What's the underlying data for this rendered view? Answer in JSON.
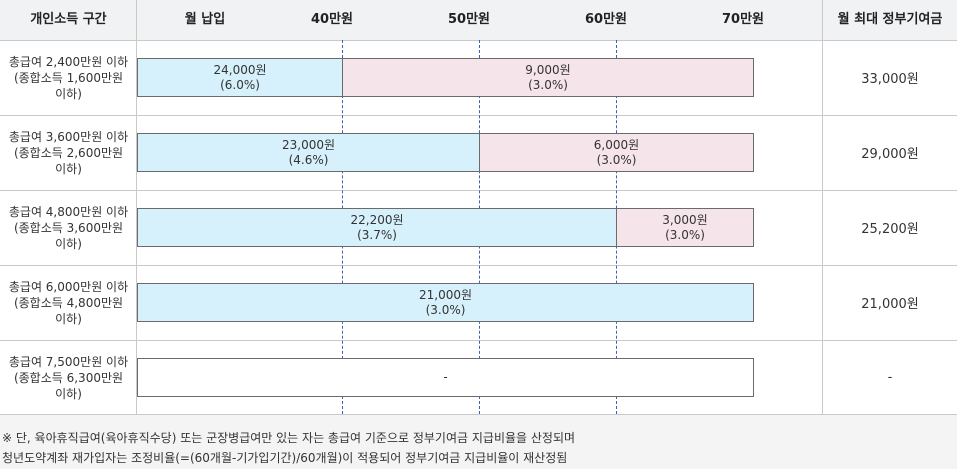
{
  "chart_data": {
    "type": "table",
    "columns": {
      "group": "개인소득 구간",
      "payment": "월 납입",
      "max": "월 최대 정부기여금"
    },
    "axis": {
      "ticks": [
        "40만원",
        "50만원",
        "60만원",
        "70만원"
      ],
      "tick_values": [
        40,
        50,
        60,
        70
      ],
      "range": [
        25,
        70
      ],
      "unit": "만원"
    },
    "rows": [
      {
        "label_lines": [
          "총급여 2,400만원 이하",
          "(종합소득 1,600만원",
          "이하)"
        ],
        "segments": [
          {
            "from": 25,
            "to": 40,
            "style": "blue",
            "lines": [
              "24,000원",
              "(6.0%)"
            ]
          },
          {
            "from": 40,
            "to": 70,
            "style": "pink",
            "lines": [
              "9,000원",
              "(3.0%)"
            ]
          }
        ],
        "max": "33,000원"
      },
      {
        "label_lines": [
          "총급여 3,600만원 이하",
          "(종합소득 2,600만원",
          "이하)"
        ],
        "segments": [
          {
            "from": 25,
            "to": 50,
            "style": "blue",
            "lines": [
              "23,000원",
              "(4.6%)"
            ]
          },
          {
            "from": 50,
            "to": 70,
            "style": "pink",
            "lines": [
              "6,000원",
              "(3.0%)"
            ]
          }
        ],
        "max": "29,000원"
      },
      {
        "label_lines": [
          "총급여 4,800만원 이하",
          "(종합소득 3,600만원",
          "이하)"
        ],
        "segments": [
          {
            "from": 25,
            "to": 60,
            "style": "blue",
            "lines": [
              "22,200원",
              "(3.7%)"
            ]
          },
          {
            "from": 60,
            "to": 70,
            "style": "pink",
            "lines": [
              "3,000원",
              "(3.0%)"
            ]
          }
        ],
        "max": "25,200원"
      },
      {
        "label_lines": [
          "총급여 6,000만원 이하",
          "(종합소득 4,800만원",
          "이하)"
        ],
        "segments": [
          {
            "from": 25,
            "to": 70,
            "style": "blue",
            "lines": [
              "21,000원",
              "(3.0%)"
            ]
          }
        ],
        "max": "21,000원"
      },
      {
        "label_lines": [
          "총급여 7,500만원 이하",
          "(종합소득 6,300만원",
          "이하)"
        ],
        "segments": [
          {
            "from": 25,
            "to": 70,
            "style": "empty",
            "lines": [
              "-"
            ]
          }
        ],
        "max": "-"
      }
    ],
    "colors": {
      "blue": "#d6f1fb",
      "pink": "#f5e4ea",
      "dash": "#3a62b8",
      "header_bg": "#f1f2f4"
    }
  },
  "notes": [
    "※ 단, 육아휴직급여(육아휴직수당) 또는 군장병급여만 있는 자는 총급여 기준으로 정부기여금 지급비율을 산정되며",
    "청년도약계좌 재가입자는 조정비율(=(60개월-기가입기간)/60개월)이 적용되어 정부기여금 지급비율이 재산정됨"
  ]
}
